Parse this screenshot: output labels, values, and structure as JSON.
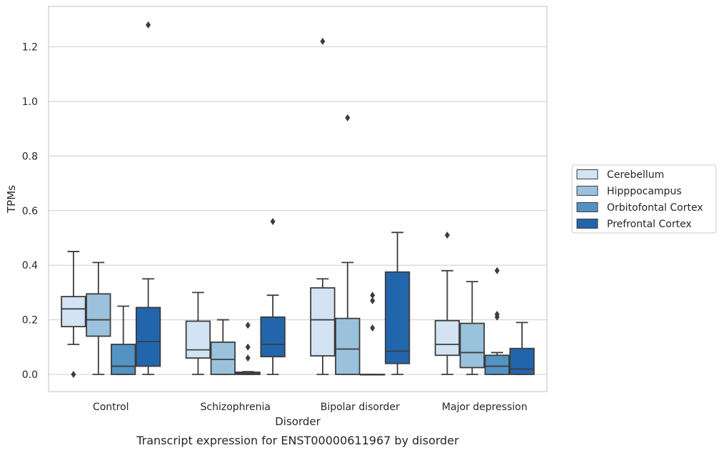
{
  "chart_data": {
    "type": "box",
    "title": "",
    "caption": "Transcript expression for ENST00000611967 by disorder",
    "xlabel": "Disorder",
    "ylabel": "TPMs",
    "ylim": [
      -0.062,
      1.35
    ],
    "yticks": [
      0.0,
      0.2,
      0.4,
      0.6,
      0.8,
      1.0,
      1.2
    ],
    "ytick_labels": [
      "0.0",
      "0.2",
      "0.4",
      "0.6",
      "0.8",
      "1.0",
      "1.2"
    ],
    "categories": [
      "Control",
      "Schizophrenia",
      "Bipolar disorder",
      "Major depression"
    ],
    "grid": "horizontal",
    "legend_position": "right",
    "series": [
      {
        "name": "Cerebellum",
        "color": "#d4e3f3",
        "boxes": [
          {
            "whislo": 0.11,
            "q1": 0.175,
            "med": 0.24,
            "q3": 0.285,
            "whishi": 0.45,
            "fliers": [
              0.0
            ]
          },
          {
            "whislo": 0.0,
            "q1": 0.06,
            "med": 0.09,
            "q3": 0.195,
            "whishi": 0.3,
            "fliers": []
          },
          {
            "whislo": 0.0,
            "q1": 0.068,
            "med": 0.2,
            "q3": 0.317,
            "whishi": 0.35,
            "fliers": [
              1.22
            ]
          },
          {
            "whislo": 0.0,
            "q1": 0.07,
            "med": 0.11,
            "q3": 0.197,
            "whishi": 0.38,
            "fliers": [
              0.51
            ]
          }
        ]
      },
      {
        "name": "Hipppocampus",
        "color": "#9ac2dc",
        "boxes": [
          {
            "whislo": 0.0,
            "q1": 0.14,
            "med": 0.2,
            "q3": 0.295,
            "whishi": 0.41,
            "fliers": []
          },
          {
            "whislo": 0.0,
            "q1": 0.0,
            "med": 0.055,
            "q3": 0.118,
            "whishi": 0.2,
            "fliers": []
          },
          {
            "whislo": 0.0,
            "q1": 0.0,
            "med": 0.093,
            "q3": 0.205,
            "whishi": 0.41,
            "fliers": [
              0.94
            ]
          },
          {
            "whislo": 0.0,
            "q1": 0.025,
            "med": 0.08,
            "q3": 0.187,
            "whishi": 0.34,
            "fliers": []
          }
        ]
      },
      {
        "name": "Orbitofontal Cortex",
        "color": "#5393c3",
        "boxes": [
          {
            "whislo": 0.0,
            "q1": 0.0,
            "med": 0.03,
            "q3": 0.11,
            "whishi": 0.25,
            "fliers": []
          },
          {
            "whislo": 0.0,
            "q1": 0.0,
            "med": 0.004,
            "q3": 0.008,
            "whishi": 0.01,
            "fliers": [
              0.06,
              0.1,
              0.18
            ]
          },
          {
            "whislo": 0.0,
            "q1": 0.0,
            "med": 0.0,
            "q3": 0.0,
            "whishi": 0.0,
            "fliers": [
              0.17,
              0.27,
              0.29
            ]
          },
          {
            "whislo": 0.0,
            "q1": 0.0,
            "med": 0.03,
            "q3": 0.07,
            "whishi": 0.08,
            "fliers": [
              0.21,
              0.22,
              0.38
            ]
          }
        ]
      },
      {
        "name": "Prefrontal Cortex",
        "color": "#2166ac",
        "boxes": [
          {
            "whislo": 0.0,
            "q1": 0.03,
            "med": 0.12,
            "q3": 0.245,
            "whishi": 0.35,
            "fliers": [
              1.28
            ]
          },
          {
            "whislo": 0.0,
            "q1": 0.065,
            "med": 0.11,
            "q3": 0.21,
            "whishi": 0.29,
            "fliers": [
              0.56
            ]
          },
          {
            "whislo": 0.0,
            "q1": 0.04,
            "med": 0.085,
            "q3": 0.375,
            "whishi": 0.52,
            "fliers": []
          },
          {
            "whislo": 0.0,
            "q1": 0.0,
            "med": 0.02,
            "q3": 0.095,
            "whishi": 0.19,
            "fliers": []
          }
        ]
      }
    ],
    "colors": {
      "line": "#3d3d3d",
      "grid": "#d0d0d0",
      "spine": "#cccccc"
    }
  }
}
